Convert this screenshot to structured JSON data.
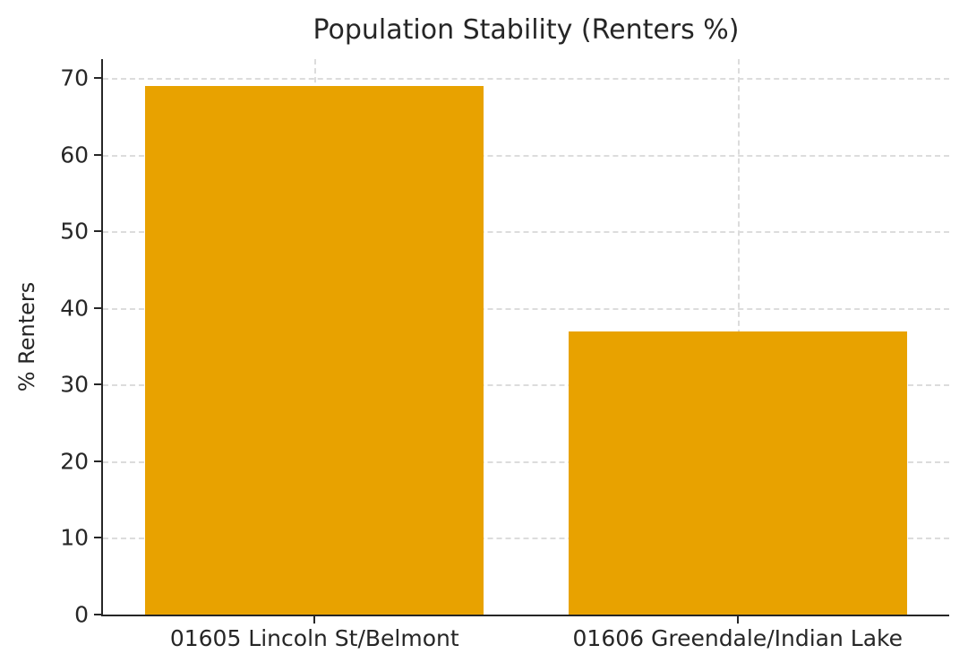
{
  "chart_data": {
    "type": "bar",
    "title": "Population Stability (Renters %)",
    "xlabel": "",
    "ylabel": "% Renters",
    "categories": [
      "01605 Lincoln St/Belmont",
      "01606 Greendale/Indian Lake"
    ],
    "values": [
      69,
      37
    ],
    "ylim": [
      0,
      72.5
    ],
    "ytick_step": 10,
    "yticks": [
      0,
      10,
      20,
      30,
      40,
      50,
      60,
      70
    ],
    "bar_color": "#E8A200",
    "grid": "dashed",
    "grid_color": "#dcdcdc",
    "axis_color": "#262626",
    "legend": "none",
    "bar_width_fraction": 0.8
  }
}
